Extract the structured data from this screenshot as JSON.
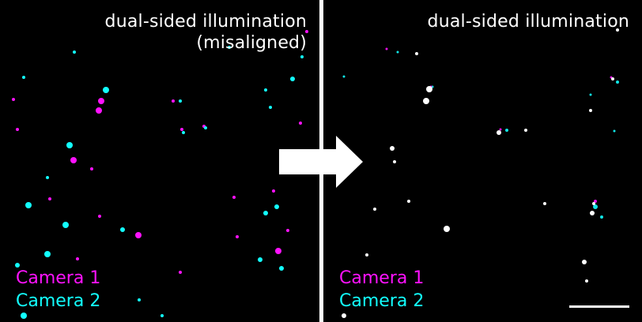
{
  "panels": {
    "left": {
      "title_line1": "dual-sided illumination",
      "title_line2": "(misaligned)",
      "legend_camera1": "Camera 1",
      "legend_camera2": "Camera 2"
    },
    "right": {
      "title_line1": "dual-sided illumination",
      "legend_camera1": "Camera 1",
      "legend_camera2": "Camera 2"
    }
  },
  "colors": {
    "camera1": "#ff12ff",
    "camera2": "#12ffff",
    "background": "#000000",
    "overlap": "#ffffff"
  },
  "icons": {
    "arrow": "right-arrow-icon",
    "scale": "scale-bar"
  }
}
